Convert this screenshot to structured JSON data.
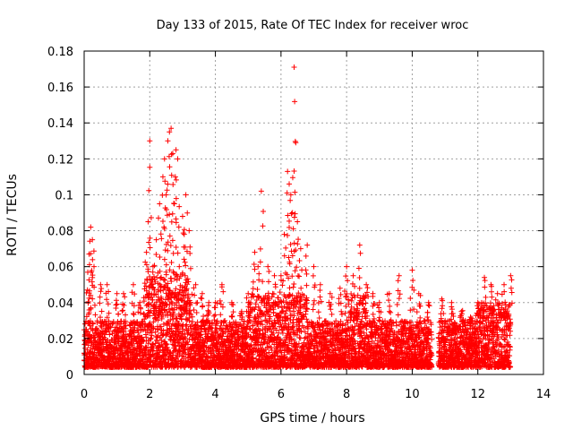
{
  "chart_data": {
    "type": "scatter",
    "title": "Day 133 of 2015, Rate Of TEC Index for receiver wroc",
    "xlabel": "GPS time / hours",
    "ylabel": "ROTI / TECUs",
    "xlim": [
      0,
      14
    ],
    "ylim": [
      0,
      0.18
    ],
    "xticks": [
      0,
      2,
      4,
      6,
      8,
      10,
      12,
      14
    ],
    "yticks": [
      0,
      0.02,
      0.04,
      0.06,
      0.08,
      0.1,
      0.12,
      0.14,
      0.16,
      0.18
    ],
    "xtick_labels": [
      "0",
      "2",
      "4",
      "6",
      "8",
      "10",
      "12",
      "14"
    ],
    "ytick_labels": [
      "0",
      "0.02",
      "0.04",
      "0.06",
      "0.08",
      "0.1",
      "0.12",
      "0.14",
      "0.16",
      "0.18"
    ],
    "grid": true,
    "marker": "+",
    "marker_color": "#ff0000",
    "data_gap_hours": [
      10.6,
      10.8
    ],
    "series": [
      {
        "name": "ROTI",
        "color": "#ff0000",
        "points": [
          [
            0.05,
            0.025
          ],
          [
            0.1,
            0.047
          ],
          [
            0.15,
            0.067
          ],
          [
            0.2,
            0.082
          ],
          [
            0.25,
            0.075
          ],
          [
            0.3,
            0.06
          ],
          [
            0.5,
            0.05
          ],
          [
            0.7,
            0.05
          ],
          [
            1.0,
            0.045
          ],
          [
            1.2,
            0.045
          ],
          [
            1.5,
            0.05
          ],
          [
            1.7,
            0.04
          ],
          [
            1.9,
            0.068
          ],
          [
            1.95,
            0.085
          ],
          [
            2.0,
            0.13
          ],
          [
            2.1,
            0.06
          ],
          [
            2.2,
            0.075
          ],
          [
            2.3,
            0.095
          ],
          [
            2.4,
            0.11
          ],
          [
            2.45,
            0.12
          ],
          [
            2.5,
            0.1
          ],
          [
            2.55,
            0.13
          ],
          [
            2.6,
            0.135
          ],
          [
            2.65,
            0.137
          ],
          [
            2.7,
            0.123
          ],
          [
            2.75,
            0.095
          ],
          [
            2.8,
            0.125
          ],
          [
            2.85,
            0.12
          ],
          [
            2.9,
            0.06
          ],
          [
            3.0,
            0.088
          ],
          [
            3.05,
            0.078
          ],
          [
            3.1,
            0.1
          ],
          [
            3.2,
            0.08
          ],
          [
            3.4,
            0.05
          ],
          [
            3.6,
            0.045
          ],
          [
            3.8,
            0.04
          ],
          [
            4.0,
            0.04
          ],
          [
            4.2,
            0.05
          ],
          [
            4.5,
            0.04
          ],
          [
            4.8,
            0.035
          ],
          [
            5.0,
            0.045
          ],
          [
            5.2,
            0.068
          ],
          [
            5.3,
            0.06
          ],
          [
            5.4,
            0.102
          ],
          [
            5.6,
            0.06
          ],
          [
            5.8,
            0.055
          ],
          [
            6.0,
            0.055
          ],
          [
            6.1,
            0.078
          ],
          [
            6.2,
            0.113
          ],
          [
            6.25,
            0.106
          ],
          [
            6.3,
            0.1
          ],
          [
            6.35,
            0.09
          ],
          [
            6.4,
            0.171
          ],
          [
            6.45,
            0.129
          ],
          [
            6.5,
            0.085
          ],
          [
            6.6,
            0.07
          ],
          [
            6.8,
            0.072
          ],
          [
            7.0,
            0.06
          ],
          [
            7.2,
            0.05
          ],
          [
            7.5,
            0.045
          ],
          [
            7.8,
            0.048
          ],
          [
            8.0,
            0.06
          ],
          [
            8.2,
            0.055
          ],
          [
            8.4,
            0.072
          ],
          [
            8.6,
            0.05
          ],
          [
            8.8,
            0.045
          ],
          [
            9.0,
            0.04
          ],
          [
            9.3,
            0.045
          ],
          [
            9.6,
            0.055
          ],
          [
            10.0,
            0.058
          ],
          [
            10.2,
            0.045
          ],
          [
            10.5,
            0.04
          ],
          [
            10.9,
            0.042
          ],
          [
            11.2,
            0.04
          ],
          [
            11.5,
            0.035
          ],
          [
            11.8,
            0.03
          ],
          [
            12.0,
            0.04
          ],
          [
            12.2,
            0.054
          ],
          [
            12.4,
            0.05
          ],
          [
            12.6,
            0.045
          ],
          [
            12.8,
            0.05
          ],
          [
            13.0,
            0.055
          ]
        ],
        "baseline_band": [
          0.004,
          0.03
        ]
      }
    ]
  }
}
